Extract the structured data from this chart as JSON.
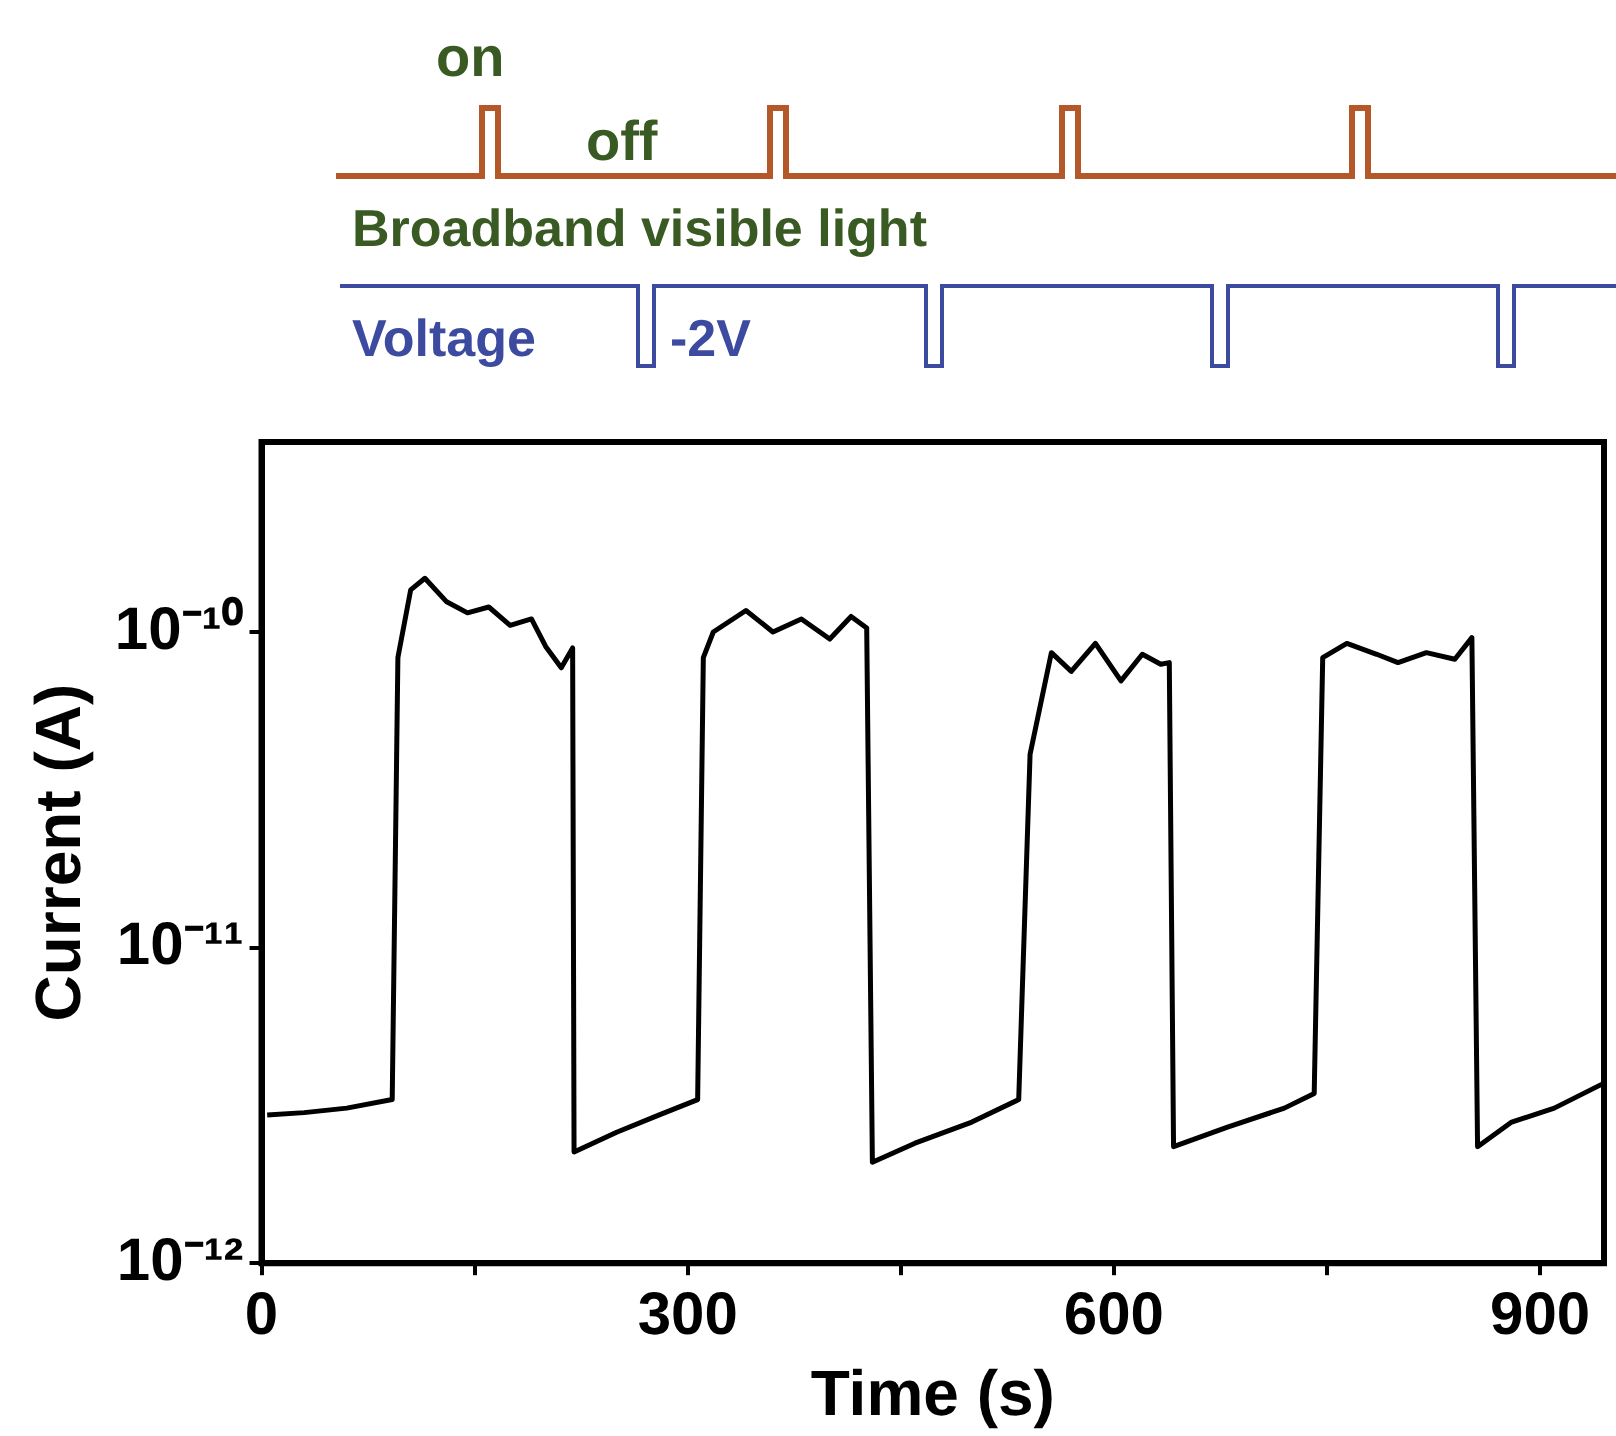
{
  "chart_data": {
    "type": "line",
    "xlabel": "Time (s)",
    "ylabel": "Current (A)",
    "log": "y",
    "grid": false,
    "legend": false,
    "marker": "none",
    "line_style": "solid",
    "xlim": [
      0,
      945
    ],
    "xticks": [
      0,
      {
        "value": 150,
        "label": null
      },
      300,
      {
        "value": 450,
        "label": null
      },
      600,
      {
        "value": 750,
        "label": null
      },
      900
    ],
    "ylim": [
      1e-12,
      4e-10
    ],
    "yticks": [
      {
        "value": 1e-12,
        "label": "10⁻¹²"
      },
      {
        "value": 1e-11,
        "label": "10⁻¹¹"
      },
      {
        "value": 1e-10,
        "label": "10⁻¹⁰"
      }
    ],
    "annotations": [
      "on",
      "off",
      "Broadband visible light",
      "Voltage",
      "-2V"
    ],
    "series": [
      {
        "color": "#000000",
        "x": [
          4,
          30,
          60,
          92,
          96,
          105,
          115,
          130,
          145,
          160,
          175,
          190,
          200,
          211,
          219,
          220,
          250,
          280,
          307,
          311,
          318,
          341,
          360,
          380,
          400,
          415,
          426,
          430,
          460,
          500,
          533,
          541,
          556,
          570,
          587,
          605,
          620,
          633,
          639,
          642,
          680,
          720,
          741,
          747,
          764,
          785,
          800,
          820,
          840,
          852,
          856,
          880,
          910,
          944
        ],
        "values": [
          2.95e-12,
          3e-12,
          3.1e-12,
          3.3e-12,
          8.3e-11,
          1.36e-10,
          1.48e-10,
          1.25e-10,
          1.15e-10,
          1.2e-10,
          1.05e-10,
          1.1e-10,
          9e-11,
          7.7e-11,
          8.9e-11,
          2.25e-12,
          2.6e-12,
          2.95e-12,
          3.3e-12,
          8.3e-11,
          1e-10,
          1.17e-10,
          1e-10,
          1.1e-10,
          9.5e-11,
          1.12e-10,
          1.03e-10,
          2.09e-12,
          2.4e-12,
          2.8e-12,
          3.3e-12,
          4.1e-11,
          8.6e-11,
          7.5e-11,
          9.2e-11,
          7e-11,
          8.5e-11,
          7.9e-11,
          8e-11,
          2.34e-12,
          2.7e-12,
          3.1e-12,
          3.45e-12,
          8.3e-11,
          9.2e-11,
          8.5e-11,
          8e-11,
          8.6e-11,
          8.2e-11,
          9.6e-11,
          2.34e-12,
          2.8e-12,
          3.1e-12,
          3.7e-12
        ]
      }
    ]
  }
}
